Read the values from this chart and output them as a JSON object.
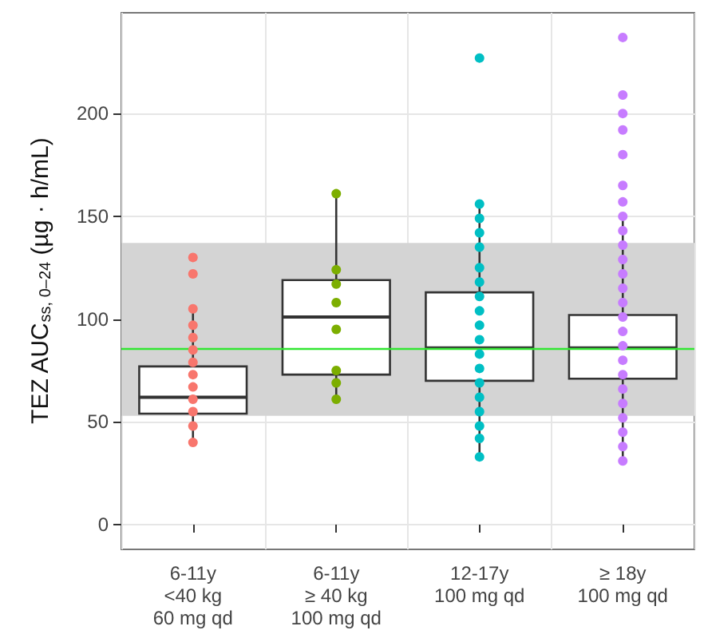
{
  "chart_data": {
    "type": "box",
    "ylabel": "TEZ AUC$_{ss, 0–24}$ (µg · h/mL)",
    "categories": [
      "6-11y\n<40 kg\n60 mg qd",
      "6-11y\n≥ 40 kg\n100 mg qd",
      "12-17y\n100 mg qd",
      "≥ 18y\n100 mg qd"
    ],
    "ylim": [
      -12,
      249
    ],
    "yticks": [
      0,
      50,
      100,
      150,
      200
    ],
    "grid": true,
    "marker": "circle",
    "bands": [
      {
        "axis": "y",
        "from": 53,
        "to": 137,
        "color": "#d4d4d4"
      }
    ],
    "ref_lines": [
      {
        "axis": "y",
        "value": 86,
        "color": "#33e633"
      }
    ],
    "series": [
      {
        "color": "#333333",
        "boxes": [
          {
            "low": 40,
            "q1": 54,
            "median": 62,
            "q3": 77,
            "high": 104
          },
          {
            "low": 60,
            "q1": 73,
            "median": 101,
            "q3": 119,
            "high": 161
          },
          {
            "low": 32,
            "q1": 70,
            "median": 86,
            "q3": 113,
            "high": 155
          },
          {
            "low": 31,
            "q1": 71,
            "median": 86,
            "q3": 102,
            "high": 148
          }
        ]
      },
      {
        "type": "scatter",
        "color": "#f8766d",
        "x": [
          "6-11y\n<40 kg\n60 mg qd",
          "6-11y\n<40 kg\n60 mg qd",
          "6-11y\n<40 kg\n60 mg qd",
          "6-11y\n<40 kg\n60 mg qd",
          "6-11y\n<40 kg\n60 mg qd",
          "6-11y\n<40 kg\n60 mg qd",
          "6-11y\n<40 kg\n60 mg qd",
          "6-11y\n<40 kg\n60 mg qd",
          "6-11y\n<40 kg\n60 mg qd",
          "6-11y\n<40 kg\n60 mg qd",
          "6-11y\n<40 kg\n60 mg qd",
          "6-11y\n<40 kg\n60 mg qd",
          "6-11y\n<40 kg\n60 mg qd"
        ],
        "values": [
          130,
          122,
          105,
          97,
          91,
          85,
          79,
          73,
          67,
          61,
          55,
          48,
          40
        ]
      },
      {
        "type": "scatter",
        "color": "#7cae00",
        "x": [
          "6-11y\n≥ 40 kg\n100 mg qd",
          "6-11y\n≥ 40 kg\n100 mg qd",
          "6-11y\n≥ 40 kg\n100 mg qd",
          "6-11y\n≥ 40 kg\n100 mg qd",
          "6-11y\n≥ 40 kg\n100 mg qd",
          "6-11y\n≥ 40 kg\n100 mg qd",
          "6-11y\n≥ 40 kg\n100 mg qd",
          "6-11y\n≥ 40 kg\n100 mg qd"
        ],
        "values": [
          161,
          124,
          117,
          108,
          95,
          75,
          69,
          61
        ]
      },
      {
        "type": "scatter",
        "color": "#00bfc4",
        "x": [
          "12-17y\n100 mg qd",
          "12-17y\n100 mg qd",
          "12-17y\n100 mg qd",
          "12-17y\n100 mg qd",
          "12-17y\n100 mg qd",
          "12-17y\n100 mg qd",
          "12-17y\n100 mg qd",
          "12-17y\n100 mg qd",
          "12-17y\n100 mg qd",
          "12-17y\n100 mg qd",
          "12-17y\n100 mg qd",
          "12-17y\n100 mg qd",
          "12-17y\n100 mg qd",
          "12-17y\n100 mg qd",
          "12-17y\n100 mg qd",
          "12-17y\n100 mg qd",
          "12-17y\n100 mg qd",
          "12-17y\n100 mg qd",
          "12-17y\n100 mg qd"
        ],
        "values": [
          227,
          156,
          149,
          142,
          135,
          125,
          118,
          111,
          104,
          97,
          90,
          83,
          76,
          69,
          62,
          55,
          48,
          42,
          33
        ]
      },
      {
        "type": "scatter",
        "color": "#c77cff",
        "x": [
          "≥ 18y\n100 mg qd",
          "≥ 18y\n100 mg qd",
          "≥ 18y\n100 mg qd",
          "≥ 18y\n100 mg qd",
          "≥ 18y\n100 mg qd",
          "≥ 18y\n100 mg qd",
          "≥ 18y\n100 mg qd",
          "≥ 18y\n100 mg qd",
          "≥ 18y\n100 mg qd",
          "≥ 18y\n100 mg qd",
          "≥ 18y\n100 mg qd",
          "≥ 18y\n100 mg qd",
          "≥ 18y\n100 mg qd",
          "≥ 18y\n100 mg qd",
          "≥ 18y\n100 mg qd",
          "≥ 18y\n100 mg qd",
          "≥ 18y\n100 mg qd",
          "≥ 18y\n100 mg qd",
          "≥ 18y\n100 mg qd",
          "≥ 18y\n100 mg qd",
          "≥ 18y\n100 mg qd",
          "≥ 18y\n100 mg qd",
          "≥ 18y\n100 mg qd",
          "≥ 18y\n100 mg qd",
          "≥ 18y\n100 mg qd"
        ],
        "values": [
          237,
          209,
          200,
          192,
          180,
          165,
          157,
          150,
          143,
          136,
          129,
          122,
          115,
          108,
          101,
          94,
          87,
          80,
          73,
          66,
          59,
          52,
          45,
          38,
          31
        ]
      }
    ]
  }
}
